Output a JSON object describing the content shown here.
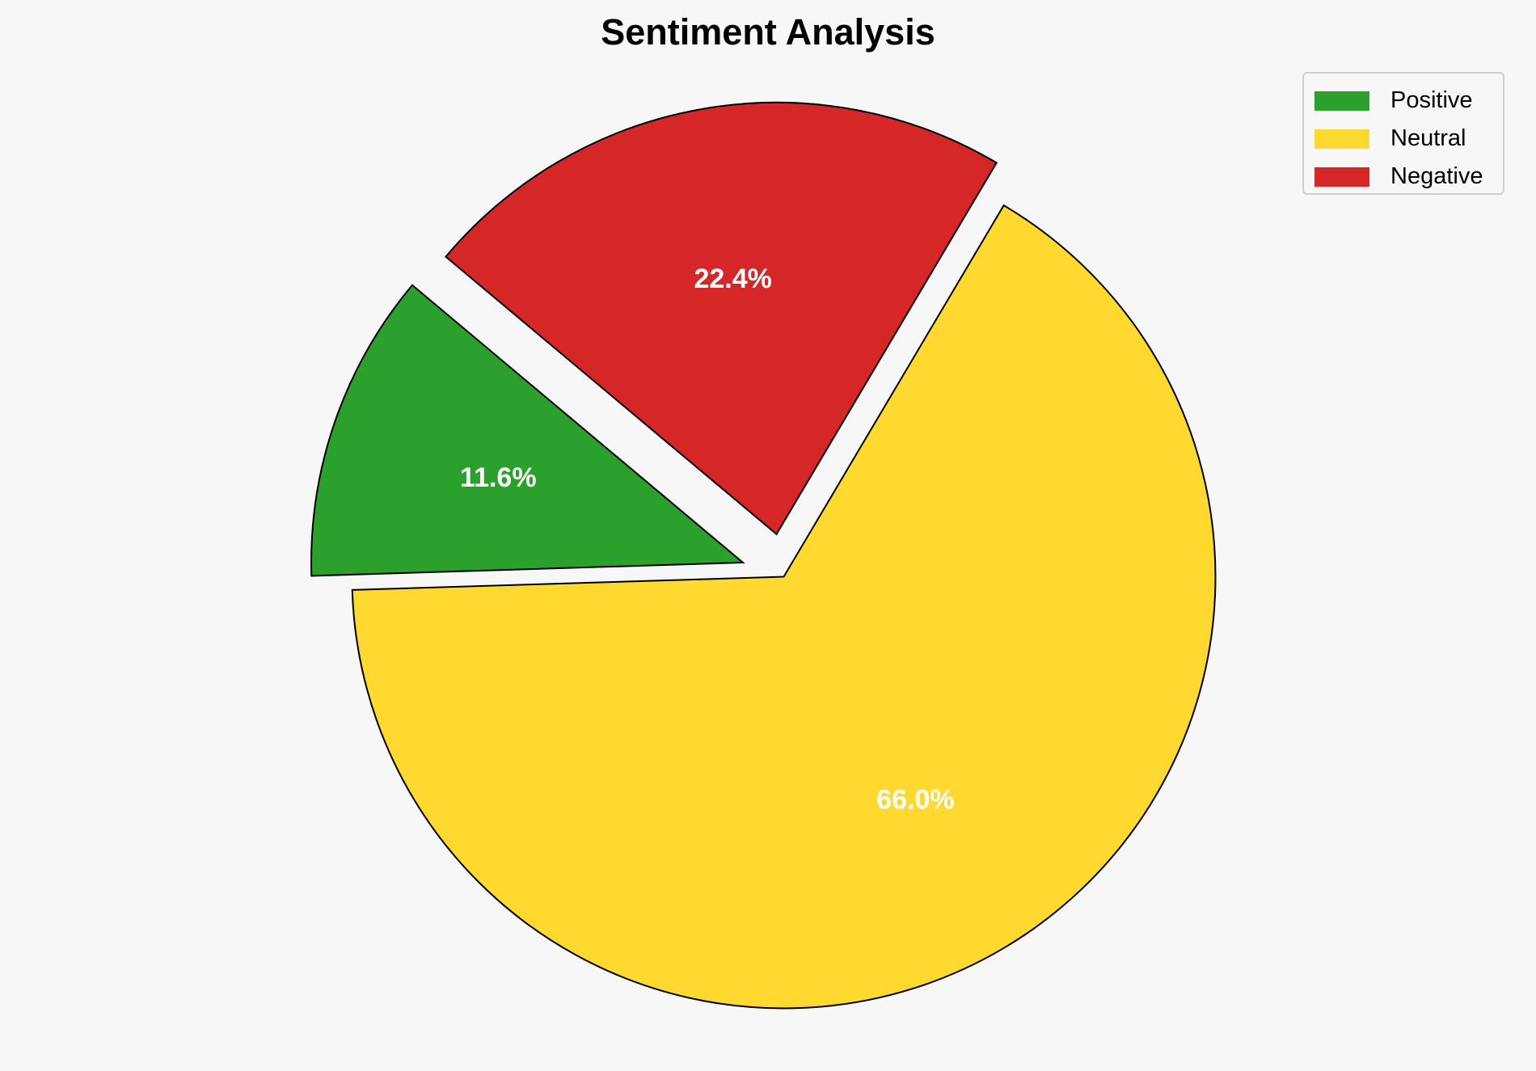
{
  "chart_data": {
    "type": "pie",
    "title": "Sentiment Analysis",
    "labels": [
      "Positive",
      "Neutral",
      "Negative"
    ],
    "values": [
      11.6,
      66.0,
      22.4
    ],
    "value_labels": [
      "11.6%",
      "66.0%",
      "22.4%"
    ],
    "colors": [
      "#2ca02c",
      "#ffd92f",
      "#d62728"
    ],
    "explode": [
      0.1,
      0,
      0.1
    ],
    "start_angle": 140,
    "direction": "counterclockwise",
    "edge_color": "#000000",
    "label_color": "#ffffff",
    "legend_position": "top-right"
  }
}
